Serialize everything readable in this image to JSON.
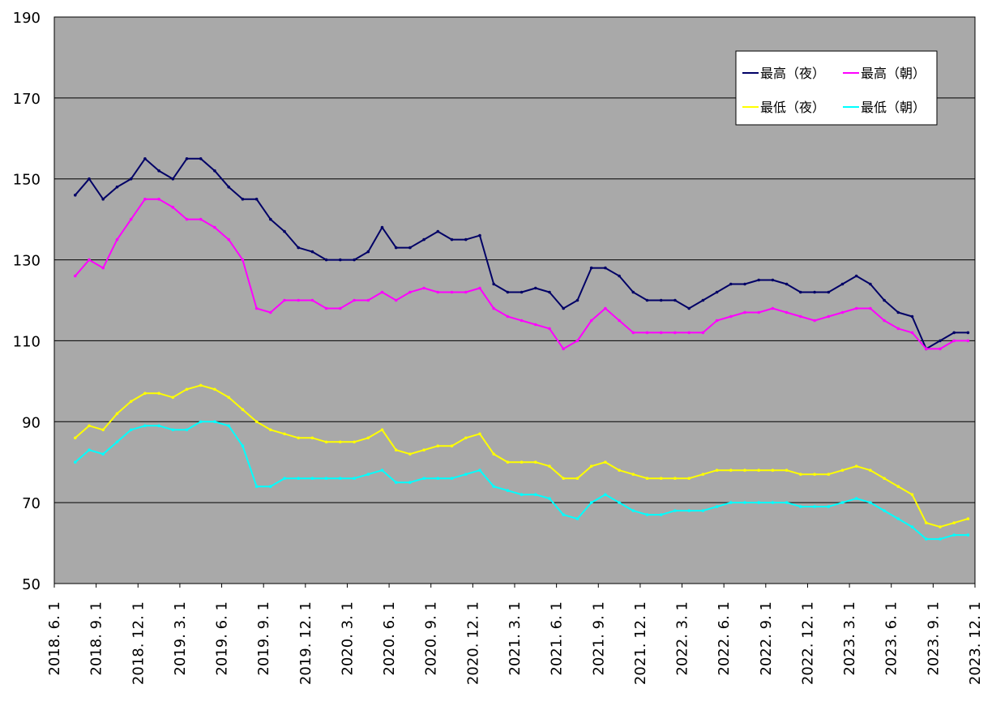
{
  "chart_data": {
    "type": "line",
    "ylim": [
      50,
      190
    ],
    "y_ticks": [
      "50",
      "70",
      "90",
      "110",
      "130",
      "150",
      "170",
      "190"
    ],
    "x_ticks": [
      "2018. 6. 1",
      "2018. 9. 1",
      "2018. 12. 1",
      "2019. 3. 1",
      "2019. 6. 1",
      "2019. 9. 1",
      "2019. 12. 1",
      "2020. 3. 1",
      "2020. 6. 1",
      "2020. 9. 1",
      "2020. 12. 1",
      "2021. 3. 1",
      "2021. 6. 1",
      "2021. 9. 1",
      "2021. 12. 1",
      "2022. 3. 1",
      "2022. 6. 1",
      "2022. 9. 1",
      "2022. 12. 1",
      "2023. 3. 1",
      "2023. 6. 1",
      "2023. 9. 1",
      "2023. 12. 1"
    ],
    "x": [
      "2018-07",
      "2018-08",
      "2018-09",
      "2018-10",
      "2018-11",
      "2018-12",
      "2019-01",
      "2019-02",
      "2019-03",
      "2019-04",
      "2019-05",
      "2019-06",
      "2019-07",
      "2019-08",
      "2019-09",
      "2019-10",
      "2019-11",
      "2019-12",
      "2020-01",
      "2020-02",
      "2020-03",
      "2020-04",
      "2020-05",
      "2020-06",
      "2020-07",
      "2020-08",
      "2020-09",
      "2020-10",
      "2020-11",
      "2020-12",
      "2021-01",
      "2021-02",
      "2021-03",
      "2021-04",
      "2021-05",
      "2021-06",
      "2021-07",
      "2021-08",
      "2021-09",
      "2021-10",
      "2021-11",
      "2021-12",
      "2022-01",
      "2022-02",
      "2022-03",
      "2022-04",
      "2022-05",
      "2022-06",
      "2022-07",
      "2022-08",
      "2022-09",
      "2022-10",
      "2022-11",
      "2022-12",
      "2023-01",
      "2023-02",
      "2023-03",
      "2023-04",
      "2023-05",
      "2023-06",
      "2023-07",
      "2023-08",
      "2023-09",
      "2023-10",
      "2023-11"
    ],
    "series": [
      {
        "name": "最高（夜）",
        "color": "#000066",
        "values": [
          146,
          150,
          145,
          148,
          150,
          155,
          152,
          150,
          155,
          155,
          152,
          148,
          145,
          145,
          140,
          137,
          133,
          132,
          130,
          130,
          130,
          132,
          138,
          133,
          133,
          135,
          137,
          135,
          135,
          136,
          124,
          122,
          122,
          123,
          122,
          118,
          120,
          128,
          128,
          126,
          122,
          120,
          120,
          120,
          118,
          120,
          122,
          124,
          124,
          125,
          125,
          124,
          122,
          122,
          122,
          124,
          126,
          124,
          120,
          117,
          116,
          108,
          110,
          112,
          112
        ]
      },
      {
        "name": "最高（朝）",
        "color": "#ff00ff",
        "values": [
          126,
          130,
          128,
          135,
          140,
          145,
          145,
          143,
          140,
          140,
          138,
          135,
          130,
          118,
          117,
          120,
          120,
          120,
          118,
          118,
          120,
          120,
          122,
          120,
          122,
          123,
          122,
          122,
          122,
          123,
          118,
          116,
          115,
          114,
          113,
          108,
          110,
          115,
          118,
          115,
          112,
          112,
          112,
          112,
          112,
          112,
          115,
          116,
          117,
          117,
          118,
          117,
          116,
          115,
          116,
          117,
          118,
          118,
          115,
          113,
          112,
          108,
          108,
          110,
          110
        ]
      },
      {
        "name": "最低（夜）",
        "color": "#ffff00",
        "values": [
          86,
          89,
          88,
          92,
          95,
          97,
          97,
          96,
          98,
          99,
          98,
          96,
          93,
          90,
          88,
          87,
          86,
          86,
          85,
          85,
          85,
          86,
          88,
          83,
          82,
          83,
          84,
          84,
          86,
          87,
          82,
          80,
          80,
          80,
          79,
          76,
          76,
          79,
          80,
          78,
          77,
          76,
          76,
          76,
          76,
          77,
          78,
          78,
          78,
          78,
          78,
          78,
          77,
          77,
          77,
          78,
          79,
          78,
          76,
          74,
          72,
          65,
          64,
          65,
          66
        ]
      },
      {
        "name": "最低（朝）",
        "color": "#00ffff",
        "values": [
          80,
          83,
          82,
          85,
          88,
          89,
          89,
          88,
          88,
          90,
          90,
          89,
          84,
          74,
          74,
          76,
          76,
          76,
          76,
          76,
          76,
          77,
          78,
          75,
          75,
          76,
          76,
          76,
          77,
          78,
          74,
          73,
          72,
          72,
          71,
          67,
          66,
          70,
          72,
          70,
          68,
          67,
          67,
          68,
          68,
          68,
          69,
          70,
          70,
          70,
          70,
          70,
          69,
          69,
          69,
          70,
          71,
          70,
          68,
          66,
          64,
          61,
          61,
          62,
          62
        ]
      }
    ],
    "legend_position": "top-right",
    "grid": "horizontal"
  }
}
